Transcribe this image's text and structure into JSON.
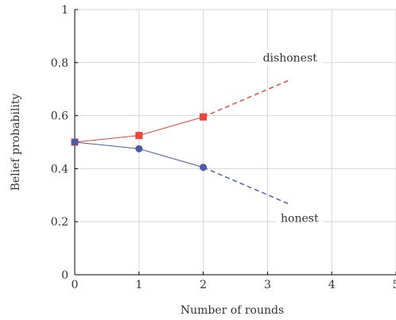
{
  "chart_data": {
    "type": "line",
    "xlabel": "Number of rounds",
    "ylabel": "Belief probability",
    "xlim": [
      0,
      5
    ],
    "ylim": [
      0,
      1
    ],
    "xticks": [
      "0",
      "1",
      "2",
      "3",
      "4",
      "5"
    ],
    "yticks": [
      "0",
      "0.2",
      "0.4",
      "0.6",
      "0.8",
      "1"
    ],
    "grid": true,
    "series": [
      {
        "name": "dishonest",
        "color": "#e8453c",
        "marker": "square",
        "x": [
          0,
          1,
          2
        ],
        "y": [
          0.5,
          0.525,
          0.595
        ],
        "projection": {
          "x": [
            2,
            3.35
          ],
          "y": [
            0.595,
            0.735
          ]
        }
      },
      {
        "name": "honest",
        "color": "#4a5aa8",
        "marker": "circle",
        "x": [
          0,
          1,
          2
        ],
        "y": [
          0.5,
          0.475,
          0.405
        ],
        "projection": {
          "x": [
            2,
            3.35
          ],
          "y": [
            0.405,
            0.265
          ]
        }
      }
    ],
    "annotations": [
      {
        "text": "dishonest",
        "series": "dishonest"
      },
      {
        "text": "honest",
        "series": "honest"
      }
    ]
  }
}
